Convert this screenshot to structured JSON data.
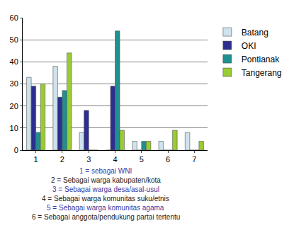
{
  "chart_data": {
    "type": "bar",
    "categories": [
      "1",
      "2",
      "3",
      "4",
      "5",
      "6",
      "7"
    ],
    "series": [
      {
        "name": "Batang",
        "color": "#cfe3ee",
        "values": [
          33,
          38,
          8,
          0,
          4,
          4,
          8
        ]
      },
      {
        "name": "OKI",
        "color": "#2e2e8f",
        "values": [
          29,
          24,
          18,
          29,
          0,
          0,
          0
        ]
      },
      {
        "name": "Pontianak",
        "color": "#1f8f8f",
        "values": [
          8,
          27,
          0,
          54,
          4,
          0,
          0
        ]
      },
      {
        "name": "Tangerang",
        "color": "#99cc33",
        "values": [
          30,
          44,
          0,
          9,
          4,
          9,
          4
        ]
      }
    ],
    "ylim": [
      0,
      60
    ],
    "yticks": [
      0,
      10,
      20,
      30,
      40,
      50,
      60
    ],
    "grid": true,
    "legend": "right",
    "annotations": [
      "1 = sebagai WNI",
      "2 = Sebagai warga kabupaten/kota",
      "3 = Sebagai warga desa/asal-usul",
      "4 = Sebagai warga komunitas suku/etnis",
      "5 = Sebagai warga komunitas agama",
      "6 = Sebagai anggota/pendukung partai tertentu"
    ]
  }
}
